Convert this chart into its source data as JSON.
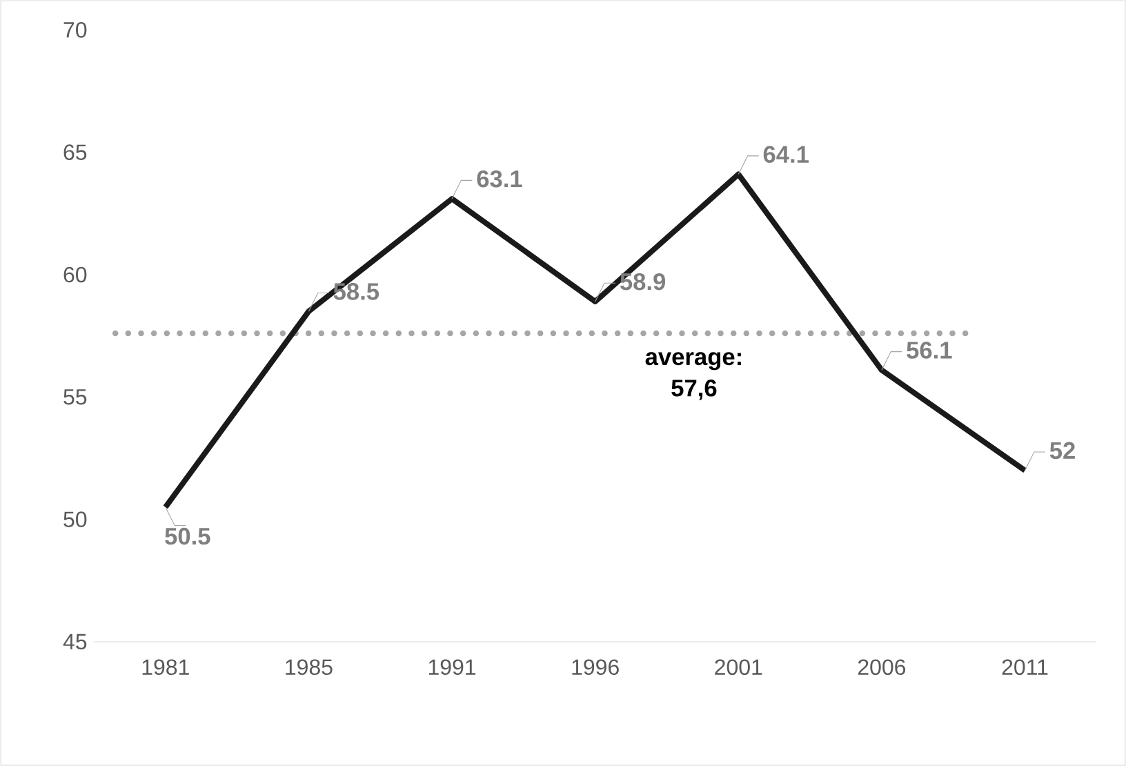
{
  "chart_data": {
    "type": "line",
    "categories": [
      "1981",
      "1985",
      "1991",
      "1996",
      "2001",
      "2006",
      "2011"
    ],
    "series": [
      {
        "color": "#1a1a1a",
        "values": [
          50.5,
          58.5,
          63.1,
          58.9,
          64.1,
          56.1,
          52
        ]
      }
    ],
    "ylim": [
      45,
      70
    ],
    "yticks": [
      45,
      50,
      55,
      60,
      65,
      70
    ],
    "data_labels": true,
    "marker": "none",
    "line_style": "solid",
    "ref_lines": [
      {
        "axis": "y",
        "value": 57.6,
        "label": "average: 57,6",
        "color": "#a6a6a6",
        "line_style": "dotted"
      }
    ]
  }
}
